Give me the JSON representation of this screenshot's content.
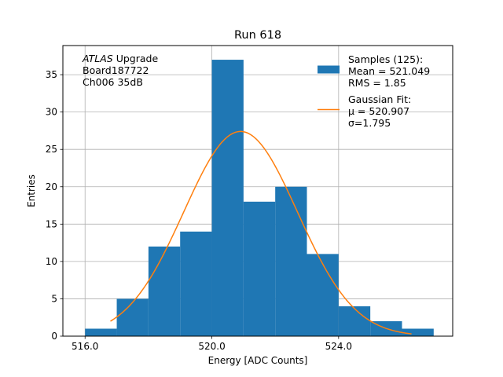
{
  "chart_data": {
    "type": "bar",
    "title": "Run 618",
    "xlabel": "Energy [ADC Counts]",
    "ylabel": "Entries",
    "xlim": [
      515.3,
      527.6
    ],
    "ylim": [
      0,
      38.9
    ],
    "x_ticks": [
      516,
      520,
      524
    ],
    "x_tick_labels": [
      "516.0",
      "520.0",
      "524.0"
    ],
    "y_ticks": [
      0,
      5,
      10,
      15,
      20,
      25,
      30,
      35
    ],
    "y_tick_labels": [
      "0",
      "5",
      "10",
      "15",
      "20",
      "25",
      "30",
      "35"
    ],
    "grid": true,
    "bin_edges": [
      516.0,
      517.0,
      518.0,
      519.0,
      520.0,
      521.0,
      522.0,
      523.0,
      524.0,
      525.0,
      526.0,
      527.0
    ],
    "counts": [
      1,
      5,
      12,
      14,
      37,
      18,
      20,
      11,
      4,
      2,
      1
    ],
    "series": [
      {
        "name": "Samples (125):",
        "kind": "histogram",
        "color": "#1f77b4"
      },
      {
        "name": "Gaussian Fit:",
        "kind": "line",
        "color": "#ff7f0e",
        "fit": {
          "amplitude": 27.4,
          "mu": 520.907,
          "sigma": 1.795,
          "x_range": [
            516.8,
            526.3
          ]
        }
      }
    ],
    "annotation": {
      "lines": [
        {
          "italic": "ATLAS",
          "text": " Upgrade"
        },
        {
          "text": " Board187722"
        },
        {
          "text": " Ch006 35dB"
        }
      ]
    },
    "legend": {
      "position": "top-right",
      "entries": [
        {
          "lines": [
            "Samples (125):",
            " Mean = 521.049",
            " RMS = 1.85"
          ],
          "marker": "patch",
          "color": "#1f77b4"
        },
        {
          "lines": [
            "Gaussian Fit:",
            " μ = 520.907",
            " σ=1.795"
          ],
          "marker": "line",
          "color": "#ff7f0e"
        }
      ]
    }
  }
}
